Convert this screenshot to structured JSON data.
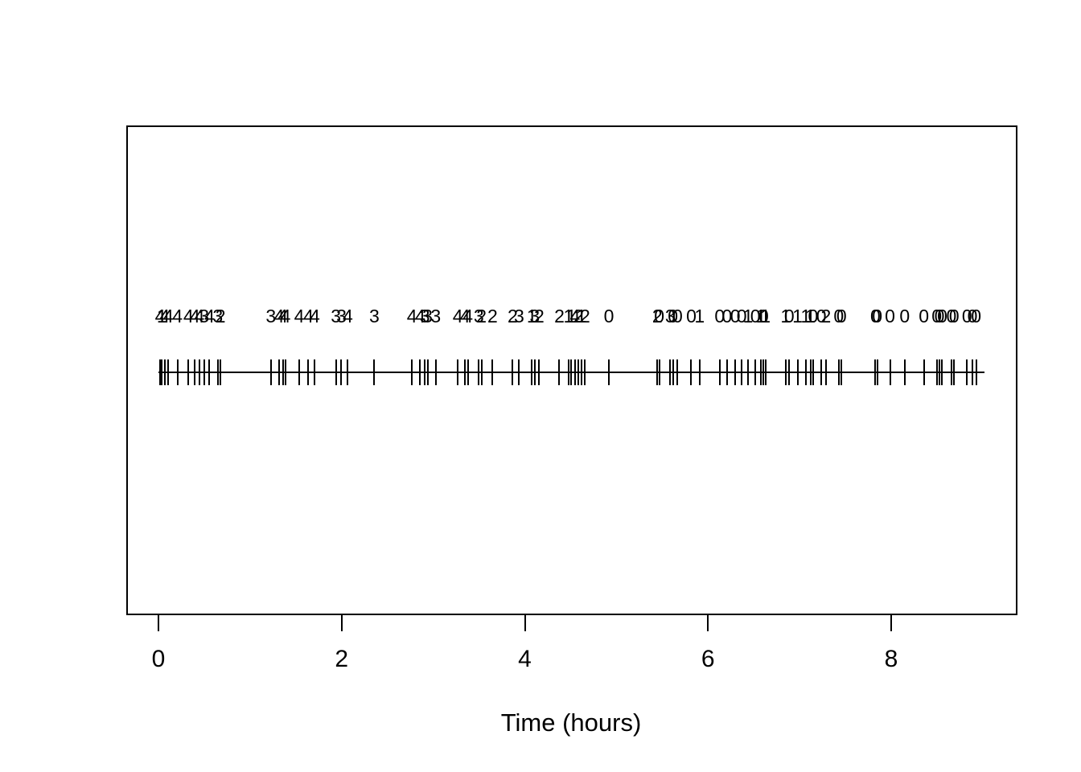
{
  "figure": {
    "background": "#ffffff",
    "foreground": "#000000"
  },
  "chart_data": {
    "type": "rug",
    "title": "",
    "xlabel": "Time (hours)",
    "ylabel": "",
    "x_axis": {
      "ticks": [
        0,
        2,
        4,
        6,
        8
      ],
      "tick_labels": [
        "0",
        "2",
        "4",
        "6",
        "8"
      ]
    },
    "xlim": [
      -0.35,
      9.35
    ],
    "rug_line_range": [
      -0.02,
      9.0
    ],
    "grid": "off",
    "legend": "none",
    "events": [
      {
        "t": 0.0,
        "label": "4"
      },
      {
        "t": 0.02,
        "label": "1"
      },
      {
        "t": 0.05,
        "label": "4"
      },
      {
        "t": 0.09,
        "label": "4"
      },
      {
        "t": 0.19,
        "label": "4"
      },
      {
        "t": 0.31,
        "label": "4"
      },
      {
        "t": 0.38,
        "label": "4"
      },
      {
        "t": 0.43,
        "label": "4"
      },
      {
        "t": 0.48,
        "label": "3"
      },
      {
        "t": 0.54,
        "label": "4"
      },
      {
        "t": 0.63,
        "label": "3"
      },
      {
        "t": 0.66,
        "label": "2"
      },
      {
        "t": 1.21,
        "label": "3"
      },
      {
        "t": 1.3,
        "label": "4"
      },
      {
        "t": 1.34,
        "label": "4"
      },
      {
        "t": 1.37,
        "label": "4"
      },
      {
        "t": 1.52,
        "label": "4"
      },
      {
        "t": 1.62,
        "label": "4"
      },
      {
        "t": 1.69,
        "label": "4"
      },
      {
        "t": 1.92,
        "label": "3"
      },
      {
        "t": 1.98,
        "label": "3"
      },
      {
        "t": 2.05,
        "label": "4"
      },
      {
        "t": 2.34,
        "label": "3"
      },
      {
        "t": 2.75,
        "label": "4"
      },
      {
        "t": 2.84,
        "label": "4"
      },
      {
        "t": 2.89,
        "label": "3"
      },
      {
        "t": 2.92,
        "label": "3"
      },
      {
        "t": 3.01,
        "label": "3"
      },
      {
        "t": 3.25,
        "label": "4"
      },
      {
        "t": 3.33,
        "label": "4"
      },
      {
        "t": 3.36,
        "label": "4"
      },
      {
        "t": 3.48,
        "label": "3"
      },
      {
        "t": 3.51,
        "label": "2"
      },
      {
        "t": 3.63,
        "label": "2"
      },
      {
        "t": 3.85,
        "label": "2"
      },
      {
        "t": 3.92,
        "label": "3"
      },
      {
        "t": 4.06,
        "label": "1"
      },
      {
        "t": 4.09,
        "label": "3"
      },
      {
        "t": 4.14,
        "label": "2"
      },
      {
        "t": 4.36,
        "label": "2"
      },
      {
        "t": 4.46,
        "label": "1"
      },
      {
        "t": 4.49,
        "label": "1"
      },
      {
        "t": 4.53,
        "label": "4"
      },
      {
        "t": 4.57,
        "label": "2"
      },
      {
        "t": 4.6,
        "label": "1"
      },
      {
        "t": 4.64,
        "label": "2"
      },
      {
        "t": 4.9,
        "label": "0"
      },
      {
        "t": 5.43,
        "label": "2"
      },
      {
        "t": 5.45,
        "label": "0"
      },
      {
        "t": 5.57,
        "label": "3"
      },
      {
        "t": 5.6,
        "label": "0"
      },
      {
        "t": 5.65,
        "label": "0"
      },
      {
        "t": 5.8,
        "label": "0"
      },
      {
        "t": 5.89,
        "label": "1"
      },
      {
        "t": 6.11,
        "label": "0"
      },
      {
        "t": 6.19,
        "label": "0"
      },
      {
        "t": 6.28,
        "label": "0"
      },
      {
        "t": 6.35,
        "label": "0"
      },
      {
        "t": 6.42,
        "label": "1"
      },
      {
        "t": 6.5,
        "label": "0"
      },
      {
        "t": 6.56,
        "label": "1"
      },
      {
        "t": 6.59,
        "label": "0"
      },
      {
        "t": 6.61,
        "label": "1"
      },
      {
        "t": 6.83,
        "label": "1"
      },
      {
        "t": 6.87,
        "label": "0"
      },
      {
        "t": 6.96,
        "label": "1"
      },
      {
        "t": 7.05,
        "label": "1"
      },
      {
        "t": 7.1,
        "label": "1"
      },
      {
        "t": 7.13,
        "label": "0"
      },
      {
        "t": 7.22,
        "label": "0"
      },
      {
        "t": 7.27,
        "label": "2"
      },
      {
        "t": 7.41,
        "label": "0"
      },
      {
        "t": 7.44,
        "label": "0"
      },
      {
        "t": 7.81,
        "label": "0"
      },
      {
        "t": 7.83,
        "label": "0"
      },
      {
        "t": 7.97,
        "label": "0"
      },
      {
        "t": 8.13,
        "label": "0"
      },
      {
        "t": 8.34,
        "label": "0"
      },
      {
        "t": 8.48,
        "label": "0"
      },
      {
        "t": 8.51,
        "label": "0"
      },
      {
        "t": 8.54,
        "label": "0"
      },
      {
        "t": 8.64,
        "label": "0"
      },
      {
        "t": 8.67,
        "label": "0"
      },
      {
        "t": 8.81,
        "label": "0"
      },
      {
        "t": 8.87,
        "label": "0"
      },
      {
        "t": 8.91,
        "label": "0"
      }
    ]
  }
}
